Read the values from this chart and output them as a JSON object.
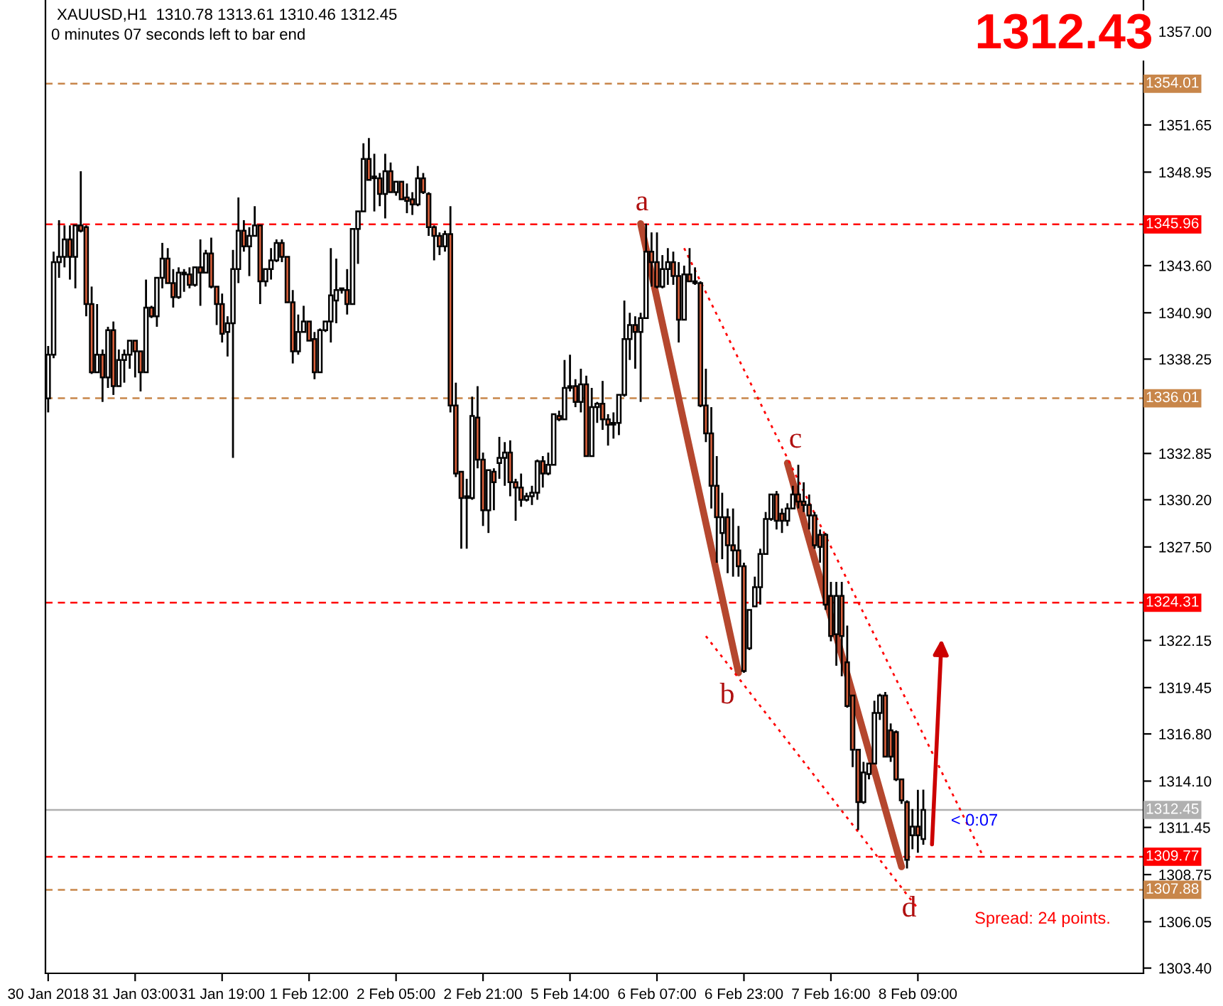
{
  "chart_data": {
    "type": "candlestick",
    "title": "XAUUSD,H1  1310.78 1313.61 1310.46 1312.45",
    "subtitle": "0 minutes 07 seconds left to bar end",
    "categories": [
      "30 Jan 2018",
      null,
      null,
      null,
      null,
      null,
      null,
      null,
      null,
      null,
      null,
      null,
      null,
      null,
      null,
      null,
      "31 Jan 03:00",
      null,
      null,
      null,
      null,
      null,
      null,
      null,
      null,
      null,
      null,
      null,
      null,
      null,
      null,
      null,
      "31 Jan 19:00",
      null,
      null,
      null,
      null,
      null,
      null,
      null,
      null,
      null,
      null,
      null,
      null,
      null,
      null,
      null,
      "1 Feb 12:00",
      null,
      null,
      null,
      null,
      null,
      null,
      null,
      null,
      null,
      null,
      null,
      null,
      null,
      null,
      null,
      "2 Feb 05:00",
      null,
      null,
      null,
      null,
      null,
      null,
      null,
      null,
      null,
      null,
      null,
      null,
      null,
      null,
      null,
      "2 Feb 21:00",
      null,
      null,
      null,
      null,
      null,
      null,
      null,
      null,
      null,
      null,
      null,
      null,
      null,
      null,
      null,
      "5 Feb 14:00",
      null,
      null,
      null,
      null,
      null,
      null,
      null,
      null,
      null,
      null,
      null,
      null,
      null,
      null,
      null,
      "6 Feb 07:00",
      null,
      null,
      null,
      null,
      null,
      null,
      null,
      null,
      null,
      null,
      null,
      null,
      null,
      null,
      null,
      "6 Feb 23:00",
      null,
      null,
      null,
      null,
      null,
      null,
      null,
      null,
      null,
      null,
      null,
      null,
      null,
      null,
      null,
      "7 Feb 16:00",
      null,
      null,
      null,
      null,
      null,
      null,
      null,
      null,
      null,
      null,
      null,
      null,
      null,
      null,
      null,
      "8 Feb 09:00",
      null,
      null,
      null,
      null,
      null,
      null,
      null,
      null,
      null,
      null,
      null,
      null,
      null,
      null,
      null,
      null,
      null,
      null,
      null,
      null,
      null,
      null,
      null,
      null,
      null,
      null,
      null,
      null,
      null,
      null,
      null,
      null,
      null,
      null,
      null,
      null,
      null,
      null,
      null,
      null,
      null
    ],
    "ohlc": [
      [
        1336.0,
        1339.0,
        1335.2,
        1338.5
      ],
      [
        1338.5,
        1344.4,
        1338.3,
        1343.8
      ],
      [
        1343.8,
        1346.2,
        1342.9,
        1344.1
      ],
      [
        1344.1,
        1345.9,
        1343.5,
        1345.1
      ],
      [
        1345.1,
        1345.9,
        1342.8,
        1344.1
      ],
      [
        1344.1,
        1345.9,
        1342.3,
        1345.9
      ],
      [
        1345.9,
        1349.0,
        1345.5,
        1345.6
      ],
      [
        1345.8,
        1345.9,
        1340.7,
        1341.4
      ],
      [
        1341.4,
        1342.4,
        1337.4,
        1337.5
      ],
      [
        1337.5,
        1341.4,
        1337.5,
        1338.5
      ],
      [
        1338.5,
        1338.8,
        1335.8,
        1337.2
      ],
      [
        1337.2,
        1340.1,
        1336.6,
        1339.9
      ],
      [
        1339.9,
        1340.4,
        1336.2,
        1336.7
      ],
      [
        1336.7,
        1338.8,
        1336.7,
        1338.2
      ],
      [
        1338.2,
        1338.8,
        1336.9,
        1338.5
      ],
      [
        1338.5,
        1339.3,
        1337.7,
        1339.3
      ],
      [
        1339.3,
        1339.3,
        1337.2,
        1338.7
      ],
      [
        1338.7,
        1338.7,
        1336.4,
        1337.5
      ],
      [
        1337.5,
        1342.8,
        1337.5,
        1341.2
      ],
      [
        1341.2,
        1341.3,
        1340.6,
        1340.7
      ],
      [
        1340.7,
        1342.9,
        1340.1,
        1342.9
      ],
      [
        1342.9,
        1344.9,
        1342.3,
        1344.0
      ],
      [
        1344.0,
        1344.6,
        1342.6,
        1342.6
      ],
      [
        1342.6,
        1343.4,
        1341.2,
        1341.8
      ],
      [
        1341.8,
        1343.5,
        1341.7,
        1343.2
      ],
      [
        1343.1,
        1343.4,
        1342.1,
        1343.2
      ],
      [
        1343.1,
        1343.5,
        1342.3,
        1342.5
      ],
      [
        1342.5,
        1343.5,
        1342.4,
        1343.5
      ],
      [
        1343.5,
        1345.1,
        1341.3,
        1343.2
      ],
      [
        1343.2,
        1344.5,
        1343.2,
        1344.3
      ],
      [
        1344.3,
        1345.2,
        1342.3,
        1342.4
      ],
      [
        1342.4,
        1342.4,
        1340.2,
        1341.4
      ],
      [
        1341.4,
        1342.0,
        1339.2,
        1339.7
      ],
      [
        1339.8,
        1340.7,
        1338.4,
        1340.3
      ],
      [
        1340.3,
        1344.5,
        1332.6,
        1343.4
      ],
      [
        1343.4,
        1347.5,
        1342.6,
        1345.6
      ],
      [
        1345.6,
        1346.2,
        1344.4,
        1344.7
      ],
      [
        1344.7,
        1345.8,
        1343.0,
        1345.3
      ],
      [
        1345.3,
        1347.0,
        1345.3,
        1345.9
      ],
      [
        1345.9,
        1345.9,
        1341.4,
        1342.7
      ],
      [
        1342.7,
        1343.4,
        1342.4,
        1343.4
      ],
      [
        1343.4,
        1344.6,
        1342.8,
        1343.9
      ],
      [
        1343.9,
        1345.1,
        1343.8,
        1344.9
      ],
      [
        1344.9,
        1345.1,
        1343.8,
        1344.1
      ],
      [
        1344.1,
        1344.1,
        1341.5,
        1341.5
      ],
      [
        1341.5,
        1342.2,
        1338.0,
        1338.7
      ],
      [
        1338.7,
        1340.8,
        1338.5,
        1339.8
      ],
      [
        1339.8,
        1341.3,
        1339.8,
        1340.4
      ],
      [
        1340.4,
        1340.4,
        1339.3,
        1339.3
      ],
      [
        1339.4,
        1339.8,
        1337.1,
        1337.5
      ],
      [
        1337.5,
        1340.0,
        1337.5,
        1339.9
      ],
      [
        1339.9,
        1340.4,
        1339.8,
        1340.4
      ],
      [
        1340.4,
        1344.6,
        1339.2,
        1341.9
      ],
      [
        1341.6,
        1344.0,
        1340.3,
        1342.2
      ],
      [
        1342.2,
        1342.3,
        1342.0,
        1342.3
      ],
      [
        1342.2,
        1343.4,
        1340.8,
        1341.4
      ],
      [
        1341.4,
        1345.7,
        1341.4,
        1345.7
      ],
      [
        1345.7,
        1346.7,
        1343.7,
        1346.7
      ],
      [
        1346.7,
        1350.6,
        1346.7,
        1349.7
      ],
      [
        1349.7,
        1350.9,
        1348.5,
        1348.5
      ],
      [
        1348.7,
        1350.0,
        1346.7,
        1348.6
      ],
      [
        1348.6,
        1348.9,
        1347.0,
        1347.7
      ],
      [
        1347.7,
        1350.0,
        1346.3,
        1349.0
      ],
      [
        1349.0,
        1349.5,
        1347.8,
        1347.8
      ],
      [
        1347.8,
        1348.4,
        1347.6,
        1348.4
      ],
      [
        1348.4,
        1348.4,
        1347.4,
        1347.4
      ],
      [
        1347.5,
        1348.3,
        1346.6,
        1347.3
      ],
      [
        1347.4,
        1347.8,
        1346.5,
        1347.1
      ],
      [
        1347.1,
        1349.3,
        1347.0,
        1348.6
      ],
      [
        1348.6,
        1348.9,
        1347.7,
        1347.8
      ],
      [
        1347.7,
        1347.8,
        1345.3,
        1345.8
      ],
      [
        1345.8,
        1345.9,
        1343.9,
        1345.3
      ],
      [
        1345.3,
        1345.5,
        1344.2,
        1344.7
      ],
      [
        1344.7,
        1345.6,
        1344.4,
        1345.4
      ],
      [
        1345.4,
        1347.0,
        1335.2,
        1335.6
      ],
      [
        1335.6,
        1336.9,
        1331.5,
        1331.7
      ],
      [
        1331.8,
        1331.8,
        1327.4,
        1330.3
      ],
      [
        1330.4,
        1331.4,
        1327.4,
        1330.3
      ],
      [
        1330.3,
        1336.1,
        1330.2,
        1335.0
      ],
      [
        1334.9,
        1336.7,
        1332.0,
        1332.5
      ],
      [
        1332.5,
        1332.9,
        1328.7,
        1329.6
      ],
      [
        1329.6,
        1331.9,
        1328.3,
        1331.9
      ],
      [
        1331.8,
        1332.0,
        1329.6,
        1331.2
      ],
      [
        1332.3,
        1333.8,
        1331.4,
        1332.6
      ],
      [
        1332.6,
        1333.5,
        1331.0,
        1332.9
      ],
      [
        1332.9,
        1333.6,
        1330.4,
        1331.2
      ],
      [
        1331.2,
        1331.4,
        1329.0,
        1330.9
      ],
      [
        1330.9,
        1331.7,
        1329.8,
        1330.2
      ],
      [
        1330.2,
        1330.6,
        1330.1,
        1330.4
      ],
      [
        1330.4,
        1331.0,
        1329.9,
        1330.6
      ],
      [
        1330.6,
        1332.5,
        1330.2,
        1332.4
      ],
      [
        1332.4,
        1332.7,
        1330.9,
        1331.7
      ],
      [
        1331.7,
        1332.9,
        1331.6,
        1332.2
      ],
      [
        1332.2,
        1335.1,
        1332.2,
        1335.1
      ],
      [
        1335.0,
        1335.3,
        1334.7,
        1334.8
      ],
      [
        1334.8,
        1338.2,
        1334.8,
        1336.6
      ],
      [
        1336.6,
        1338.5,
        1336.4,
        1336.7
      ],
      [
        1336.7,
        1337.1,
        1335.5,
        1335.8
      ],
      [
        1335.8,
        1337.7,
        1335.2,
        1336.8
      ],
      [
        1336.8,
        1337.3,
        1332.7,
        1332.7
      ],
      [
        1332.7,
        1336.6,
        1332.7,
        1335.5
      ],
      [
        1335.5,
        1335.8,
        1334.6,
        1335.7
      ],
      [
        1335.7,
        1337.0,
        1334.2,
        1334.8
      ],
      [
        1334.8,
        1335.1,
        1333.3,
        1334.5
      ],
      [
        1334.5,
        1335.2,
        1333.7,
        1334.6
      ],
      [
        1334.6,
        1336.2,
        1333.9,
        1336.2
      ],
      [
        1336.2,
        1341.6,
        1336.1,
        1339.4
      ],
      [
        1339.4,
        1340.9,
        1338.2,
        1340.2
      ],
      [
        1340.2,
        1340.7,
        1337.7,
        1339.8
      ],
      [
        1339.8,
        1340.9,
        1335.8,
        1340.6
      ],
      [
        1340.6,
        1346.0,
        1340.6,
        1344.4
      ],
      [
        1344.4,
        1345.5,
        1342.4,
        1343.8
      ],
      [
        1343.8,
        1345.5,
        1342.3,
        1342.4
      ],
      [
        1342.4,
        1344.2,
        1342.3,
        1343.4
      ],
      [
        1343.4,
        1344.6,
        1342.5,
        1343.8
      ],
      [
        1343.8,
        1344.4,
        1342.5,
        1343.0
      ],
      [
        1343.0,
        1343.8,
        1339.2,
        1340.5
      ],
      [
        1340.5,
        1343.6,
        1340.5,
        1343.1
      ],
      [
        1343.1,
        1344.6,
        1342.7,
        1342.7
      ],
      [
        1342.7,
        1343.5,
        1342.5,
        1342.6
      ],
      [
        1342.6,
        1342.7,
        1335.5,
        1335.6
      ],
      [
        1335.6,
        1337.7,
        1333.5,
        1334.0
      ],
      [
        1334.0,
        1335.5,
        1329.7,
        1331.0
      ],
      [
        1331.0,
        1332.7,
        1326.6,
        1329.2
      ],
      [
        1328.3,
        1330.6,
        1326.8,
        1329.2
      ],
      [
        1329.2,
        1329.7,
        1326.0,
        1327.6
      ],
      [
        1327.6,
        1329.7,
        1325.8,
        1327.3
      ],
      [
        1327.3,
        1328.7,
        1325.8,
        1326.4
      ],
      [
        1326.4,
        1326.6,
        1320.3,
        1320.4
      ],
      [
        1321.7,
        1323.9,
        1321.6,
        1323.9
      ],
      [
        1324.1,
        1325.8,
        1324.1,
        1325.2
      ],
      [
        1325.2,
        1327.4,
        1324.2,
        1327.1
      ],
      [
        1327.1,
        1329.5,
        1327.1,
        1329.1
      ],
      [
        1329.1,
        1330.5,
        1329.0,
        1330.5
      ],
      [
        1330.5,
        1330.7,
        1328.5,
        1329.0
      ],
      [
        1329.4,
        1329.7,
        1328.3,
        1329.0
      ],
      [
        1329.0,
        1330.0,
        1328.7,
        1329.7
      ],
      [
        1329.7,
        1331.0,
        1329.7,
        1330.5
      ],
      [
        1330.5,
        1332.2,
        1329.7,
        1330.1
      ],
      [
        1330.1,
        1331.2,
        1329.5,
        1329.9
      ],
      [
        1329.9,
        1330.5,
        1328.5,
        1329.3
      ],
      [
        1329.3,
        1329.5,
        1327.4,
        1327.6
      ],
      [
        1328.2,
        1328.5,
        1326.6,
        1327.5
      ],
      [
        1328.2,
        1328.3,
        1323.9,
        1324.2
      ],
      [
        1324.7,
        1325.5,
        1322.1,
        1322.4
      ],
      [
        1322.5,
        1325.5,
        1320.7,
        1324.7
      ],
      [
        1324.7,
        1325.5,
        1320.1,
        1322.4
      ],
      [
        1320.9,
        1323.0,
        1318.3,
        1318.4
      ],
      [
        1319.0,
        1319.0,
        1314.9,
        1315.9
      ],
      [
        1315.9,
        1315.9,
        1311.3,
        1312.9
      ],
      [
        1312.9,
        1315.2,
        1312.8,
        1314.6
      ],
      [
        1314.5,
        1315.1,
        1314.2,
        1315.1
      ],
      [
        1315.1,
        1318.7,
        1315.1,
        1318.0
      ],
      [
        1318.0,
        1319.1,
        1317.6,
        1319.0
      ],
      [
        1319.0,
        1319.2,
        1315.5,
        1315.5
      ],
      [
        1317.0,
        1317.4,
        1315.2,
        1315.5
      ],
      [
        1316.9,
        1317.0,
        1314.1,
        1314.2
      ],
      [
        1314.2,
        1314.2,
        1312.8,
        1313.0
      ],
      [
        1312.9,
        1313.0,
        1309.1,
        1309.6
      ],
      [
        1311.0,
        1312.5,
        1310.2,
        1311.5
      ],
      [
        1311.5,
        1313.6,
        1310.0,
        1311.0
      ],
      [
        1310.78,
        1313.61,
        1310.46,
        1312.45
      ],
      null,
      null,
      null,
      null,
      null,
      null,
      null,
      null,
      null,
      null,
      null,
      null,
      null,
      null,
      null,
      null,
      null,
      null,
      null,
      null,
      null,
      null,
      null,
      null,
      null,
      null,
      null,
      null,
      null,
      null,
      null,
      null,
      null,
      null,
      null,
      null,
      null,
      null,
      null,
      null
    ],
    "series": [
      {
        "type": "line",
        "color": "#b5472e",
        "line_style": "solid",
        "values": [
          null,
          null,
          null,
          null,
          null,
          null,
          null,
          null,
          null,
          null,
          null,
          null,
          null,
          null,
          null,
          null,
          null,
          null,
          null,
          null,
          null,
          null,
          null,
          null,
          null,
          null,
          null,
          null,
          null,
          null,
          null,
          null,
          null,
          null,
          null,
          null,
          null,
          null,
          null,
          null,
          null,
          null,
          null,
          null,
          null,
          null,
          null,
          null,
          null,
          null,
          null,
          null,
          null,
          null,
          null,
          null,
          null,
          null,
          null,
          null,
          null,
          null,
          null,
          null,
          null,
          null,
          null,
          null,
          null,
          null,
          null,
          null,
          null,
          null,
          null,
          null,
          null,
          null,
          null,
          null,
          null,
          null,
          null,
          null,
          null,
          null,
          null,
          null,
          null,
          null,
          null,
          null,
          null,
          null,
          null,
          null,
          null,
          null,
          null,
          null,
          null,
          null,
          null,
          null,
          null,
          null,
          null,
          null,
          null,
          1346.0,
          null,
          null,
          null,
          null,
          null,
          null,
          null,
          null,
          null,
          null,
          null,
          null,
          null,
          null,
          null,
          null,
          null,
          1320.3,
          null,
          null,
          null,
          null,
          null,
          null,
          null,
          null,
          null,
          null,
          null,
          null,
          null,
          null,
          null,
          null,
          null,
          null,
          null,
          null,
          null,
          null,
          null,
          null,
          null,
          null,
          null,
          null,
          null,
          null,
          null,
          null,
          null,
          null,
          null,
          null,
          null,
          null,
          null,
          null,
          null,
          null,
          null,
          null,
          null,
          null,
          null,
          null,
          null,
          null,
          null,
          null,
          null,
          null,
          null,
          null,
          null,
          null,
          null,
          null,
          null,
          null,
          null,
          null,
          null,
          null,
          null,
          null,
          null,
          null,
          null,
          null,
          null,
          null
        ]
      },
      {
        "type": "line",
        "color": "#b5472e",
        "line_style": "solid",
        "values": [
          null,
          null,
          null,
          null,
          null,
          null,
          null,
          null,
          null,
          null,
          null,
          null,
          null,
          null,
          null,
          null,
          null,
          null,
          null,
          null,
          null,
          null,
          null,
          null,
          null,
          null,
          null,
          null,
          null,
          null,
          null,
          null,
          null,
          null,
          null,
          null,
          null,
          null,
          null,
          null,
          null,
          null,
          null,
          null,
          null,
          null,
          null,
          null,
          null,
          null,
          null,
          null,
          null,
          null,
          null,
          null,
          null,
          null,
          null,
          null,
          null,
          null,
          null,
          null,
          null,
          null,
          null,
          null,
          null,
          null,
          null,
          null,
          null,
          null,
          null,
          null,
          null,
          null,
          null,
          null,
          null,
          null,
          null,
          null,
          null,
          null,
          null,
          null,
          null,
          null,
          null,
          null,
          null,
          null,
          null,
          null,
          null,
          null,
          null,
          null,
          null,
          null,
          null,
          null,
          null,
          null,
          null,
          null,
          null,
          null,
          null,
          null,
          null,
          null,
          null,
          null,
          null,
          null,
          null,
          null,
          null,
          null,
          null,
          null,
          null,
          null,
          null,
          null,
          null,
          null,
          null,
          null,
          null,
          null,
          null,
          null,
          1332.3,
          null,
          null,
          null,
          null,
          null,
          null,
          null,
          null,
          null,
          null,
          null,
          null,
          null,
          null,
          null,
          null,
          null,
          null,
          null,
          null,
          1309.2,
          null,
          null,
          null,
          null,
          null,
          null,
          null,
          null,
          null,
          null,
          null,
          null,
          null,
          null,
          null,
          null,
          null,
          null,
          null,
          null,
          null,
          null,
          null,
          null,
          null,
          null,
          null,
          null,
          null,
          null,
          null,
          null,
          null,
          null,
          null,
          null,
          null,
          null,
          null,
          null,
          null,
          null,
          null,
          null
        ]
      },
      {
        "type": "line",
        "color": "#ff0000",
        "line_style": "dotted",
        "values": [
          null,
          null,
          null,
          null,
          null,
          null,
          null,
          null,
          null,
          null,
          null,
          null,
          null,
          null,
          null,
          null,
          null,
          null,
          null,
          null,
          null,
          null,
          null,
          null,
          null,
          null,
          null,
          null,
          null,
          null,
          null,
          null,
          null,
          null,
          null,
          null,
          null,
          null,
          null,
          null,
          null,
          null,
          null,
          null,
          null,
          null,
          null,
          null,
          null,
          null,
          null,
          null,
          null,
          null,
          null,
          null,
          null,
          null,
          null,
          null,
          null,
          null,
          null,
          null,
          null,
          null,
          null,
          null,
          null,
          null,
          null,
          null,
          null,
          null,
          null,
          null,
          null,
          null,
          null,
          null,
          null,
          null,
          null,
          null,
          null,
          null,
          null,
          null,
          null,
          null,
          null,
          null,
          null,
          null,
          null,
          null,
          null,
          null,
          null,
          null,
          null,
          null,
          null,
          null,
          null,
          null,
          null,
          null,
          null,
          null,
          null,
          null,
          null,
          null,
          null,
          null,
          null,
          1344.6,
          null,
          null,
          null,
          null,
          null,
          null,
          null,
          null,
          null,
          null,
          null,
          null,
          null,
          null,
          null,
          null,
          null,
          null,
          null,
          null,
          null,
          null,
          null,
          null,
          null,
          null,
          null,
          null,
          null,
          null,
          null,
          null,
          null,
          null,
          null,
          null,
          null,
          null,
          null,
          null,
          null,
          null,
          null,
          null,
          null,
          null,
          null,
          null,
          null,
          null,
          null,
          null,
          null,
          null,
          1309.8,
          null,
          null,
          null,
          null,
          null,
          null,
          null,
          null,
          null,
          null,
          null,
          null,
          null,
          null,
          null,
          null,
          null,
          null,
          null,
          null,
          null,
          null,
          null,
          null,
          null,
          null,
          null,
          null,
          null
        ]
      },
      {
        "type": "line",
        "color": "#ff0000",
        "line_style": "dotted",
        "values": [
          null,
          null,
          null,
          null,
          null,
          null,
          null,
          null,
          null,
          null,
          null,
          null,
          null,
          null,
          null,
          null,
          null,
          null,
          null,
          null,
          null,
          null,
          null,
          null,
          null,
          null,
          null,
          null,
          null,
          null,
          null,
          null,
          null,
          null,
          null,
          null,
          null,
          null,
          null,
          null,
          null,
          null,
          null,
          null,
          null,
          null,
          null,
          null,
          null,
          null,
          null,
          null,
          null,
          null,
          null,
          null,
          null,
          null,
          null,
          null,
          null,
          null,
          null,
          null,
          null,
          null,
          null,
          null,
          null,
          null,
          null,
          null,
          null,
          null,
          null,
          null,
          null,
          null,
          null,
          null,
          null,
          null,
          null,
          null,
          null,
          null,
          null,
          null,
          null,
          null,
          null,
          null,
          null,
          null,
          null,
          null,
          null,
          null,
          null,
          null,
          null,
          null,
          null,
          null,
          null,
          null,
          null,
          null,
          null,
          null,
          null,
          null,
          null,
          null,
          null,
          null,
          null,
          null,
          null,
          null,
          null,
          1322.4,
          null,
          null,
          null,
          null,
          null,
          null,
          null,
          null,
          null,
          null,
          null,
          null,
          null,
          null,
          null,
          null,
          null,
          null,
          null,
          null,
          null,
          null,
          null,
          null,
          null,
          null,
          null,
          null,
          null,
          null,
          null,
          null,
          null,
          null,
          null,
          null,
          null,
          null,
          1306.8,
          null,
          null,
          null,
          null,
          null,
          null,
          null,
          null,
          null,
          null,
          null,
          null,
          null,
          null,
          null,
          null,
          null,
          null,
          null,
          null,
          null,
          null,
          null,
          null,
          null,
          null,
          null,
          null,
          null,
          null,
          null,
          null,
          null,
          null,
          null,
          null,
          null,
          null,
          null,
          null,
          null
        ]
      }
    ],
    "ylim": [
      1303.1,
      1358.8
    ],
    "yticks": [
      {
        "value": 1357.0,
        "label": "1357.00"
      },
      {
        "value": 1351.65,
        "label": "1351.65"
      },
      {
        "value": 1348.95,
        "label": "1348.95"
      },
      {
        "value": 1343.6,
        "label": "1343.60"
      },
      {
        "value": 1340.9,
        "label": "1340.90"
      },
      {
        "value": 1338.25,
        "label": "1338.25"
      },
      {
        "value": 1332.85,
        "label": "1332.85"
      },
      {
        "value": 1330.2,
        "label": "1330.20"
      },
      {
        "value": 1327.5,
        "label": "1327.50"
      },
      {
        "value": 1322.15,
        "label": "1322.15"
      },
      {
        "value": 1319.45,
        "label": "1319.45"
      },
      {
        "value": 1316.8,
        "label": "1316.80"
      },
      {
        "value": 1314.1,
        "label": "1314.10"
      },
      {
        "value": 1311.45,
        "label": "1311.45"
      },
      {
        "value": 1308.75,
        "label": "1308.75"
      },
      {
        "value": 1306.05,
        "label": "1306.05"
      },
      {
        "value": 1303.4,
        "label": "1303.40"
      }
    ],
    "ref_lines": [
      {
        "axis": "y",
        "value": 1354.01,
        "label": "1354.01",
        "color": "#c8864a",
        "line_style": "dashed"
      },
      {
        "axis": "y",
        "value": 1345.96,
        "label": "1345.96",
        "color": "#ff0000",
        "line_style": "dashed"
      },
      {
        "axis": "y",
        "value": 1336.01,
        "label": "1336.01",
        "color": "#c8864a",
        "line_style": "dashed"
      },
      {
        "axis": "y",
        "value": 1324.31,
        "label": "1324.31",
        "color": "#ff0000",
        "line_style": "dashed"
      },
      {
        "axis": "y",
        "value": 1312.45,
        "label": "1312.45",
        "color": "#b0b0b0",
        "line_style": "solid"
      },
      {
        "axis": "y",
        "value": 1309.77,
        "label": "1309.77",
        "color": "#ff0000",
        "line_style": "dashed"
      },
      {
        "axis": "y",
        "value": 1307.88,
        "label": "1307.88",
        "color": "#c8864a",
        "line_style": "dashed"
      }
    ],
    "annotations": [
      "a",
      "b",
      "c",
      "d",
      "1312.43",
      "Spread: 24 points.",
      "< 0:07"
    ]
  }
}
